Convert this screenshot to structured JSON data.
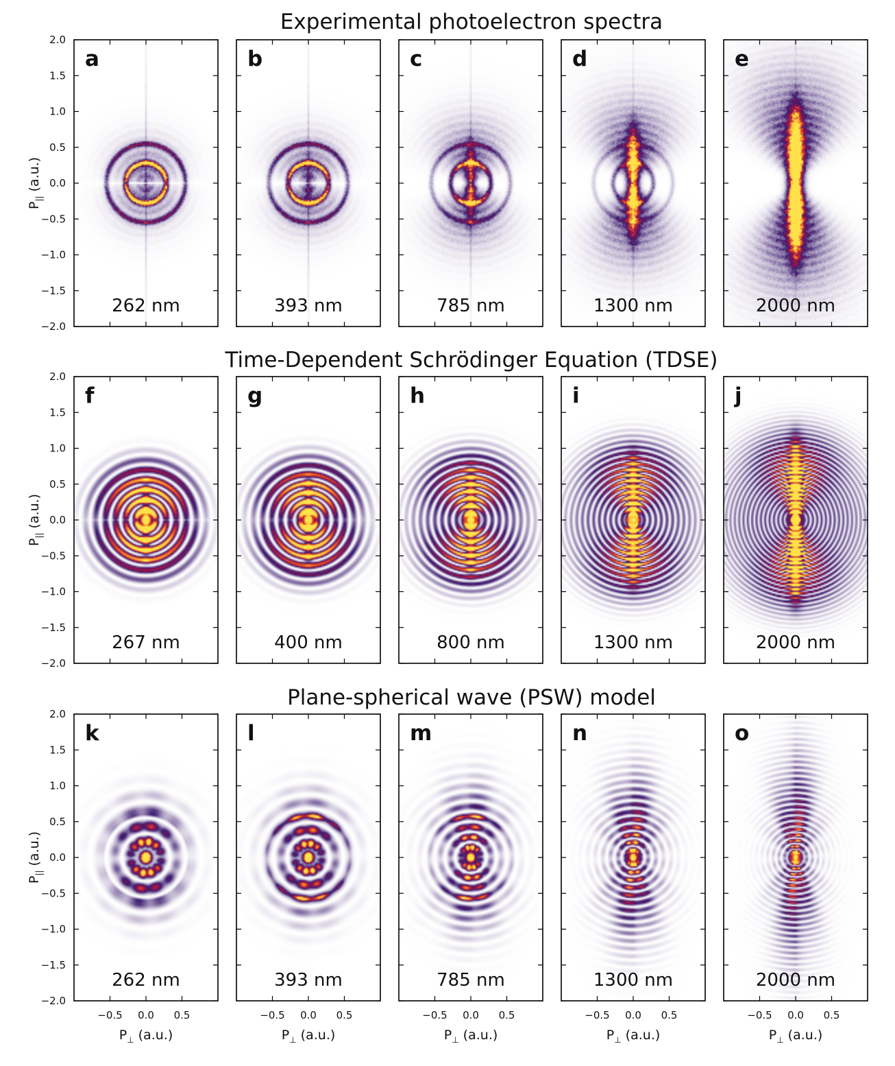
{
  "chart_data": {
    "type": "heatmap",
    "colormap": [
      "#ffffff",
      "#3b1a6e",
      "#a0134a",
      "#f05a1a",
      "#ffe24a"
    ],
    "axes": {
      "xlabel_main": "P",
      "xlabel_sub": "⊥",
      "xlabel_unit": " (a.u.)",
      "ylabel_main": "P",
      "ylabel_sub": "||",
      "ylabel_unit": " (a.u.)",
      "xlim": [
        -1.0,
        1.0
      ],
      "ylim": [
        -2.0,
        2.0
      ],
      "xticks": [
        "−0.5",
        "0.0",
        "0.5"
      ],
      "xtick_values": [
        -0.5,
        0.0,
        0.5
      ],
      "yticks": [
        "2.0",
        "1.5",
        "1.0",
        "0.5",
        "0.0",
        "−0.5",
        "−1.0",
        "−1.5",
        "−2.0"
      ],
      "ytick_values": [
        2.0,
        1.5,
        1.0,
        0.5,
        0.0,
        -0.5,
        -1.0,
        -1.5,
        -2.0
      ]
    },
    "rows": [
      {
        "title": "Experimental photoelectron spectra",
        "model": "exp",
        "panels": [
          {
            "letter": "a",
            "wavelength": "262 nm",
            "wl_nm": 262
          },
          {
            "letter": "b",
            "wavelength": "393 nm",
            "wl_nm": 393
          },
          {
            "letter": "c",
            "wavelength": "785 nm",
            "wl_nm": 785
          },
          {
            "letter": "d",
            "wavelength": "1300 nm",
            "wl_nm": 1300
          },
          {
            "letter": "e",
            "wavelength": "2000 nm",
            "wl_nm": 2000
          }
        ]
      },
      {
        "title": "Time-Dependent Schrödinger Equation (TDSE)",
        "model": "tdse",
        "panels": [
          {
            "letter": "f",
            "wavelength": "267 nm",
            "wl_nm": 267
          },
          {
            "letter": "g",
            "wavelength": "400 nm",
            "wl_nm": 400
          },
          {
            "letter": "h",
            "wavelength": "800 nm",
            "wl_nm": 800
          },
          {
            "letter": "i",
            "wavelength": "1300 nm",
            "wl_nm": 1300
          },
          {
            "letter": "j",
            "wavelength": "2000 nm",
            "wl_nm": 2000
          }
        ]
      },
      {
        "title": "Plane-spherical wave (PSW) model",
        "model": "psw",
        "panels": [
          {
            "letter": "k",
            "wavelength": "262 nm",
            "wl_nm": 262
          },
          {
            "letter": "l",
            "wavelength": "393 nm",
            "wl_nm": 393
          },
          {
            "letter": "m",
            "wavelength": "785 nm",
            "wl_nm": 785
          },
          {
            "letter": "n",
            "wavelength": "1300 nm",
            "wl_nm": 1300
          },
          {
            "letter": "o",
            "wavelength": "2000 nm",
            "wl_nm": 2000
          }
        ]
      }
    ]
  }
}
